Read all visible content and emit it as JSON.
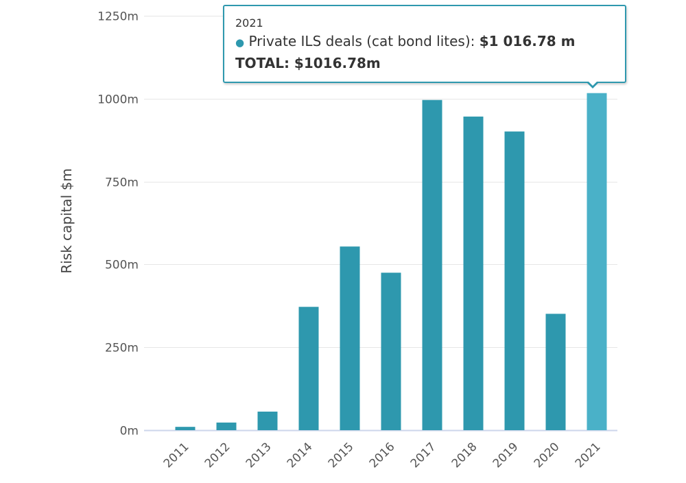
{
  "chart_data": {
    "type": "bar",
    "categories": [
      "2011",
      "2012",
      "2013",
      "2014",
      "2015",
      "2016",
      "2017",
      "2018",
      "2019",
      "2020",
      "2021"
    ],
    "series": [
      {
        "name": "Private ILS deals (cat bond lites)",
        "values": [
          10,
          23,
          56,
          372,
          554,
          475,
          996,
          946,
          901,
          351,
          1016.78
        ]
      }
    ],
    "ylabel": "Risk capital $m",
    "xlabel": "",
    "ylim": [
      0,
      1250
    ],
    "yticks": [
      0,
      250,
      500,
      750,
      1000,
      1250
    ],
    "ytick_labels": [
      "0m",
      "250m",
      "500m",
      "750m",
      "1000m",
      "1250m"
    ],
    "grid": true,
    "colors": {
      "bar": "#2e98ae",
      "bar_highlight": "#4ab1c8",
      "axis": "#ccd6eb",
      "grid": "#e6e6e6"
    },
    "highlighted": "2021"
  },
  "tooltip": {
    "header": "2021",
    "series_label": "Private ILS deals (cat bond lites): ",
    "value": "$1 016.78 m",
    "total_label": "TOTAL: $1016.78m"
  }
}
